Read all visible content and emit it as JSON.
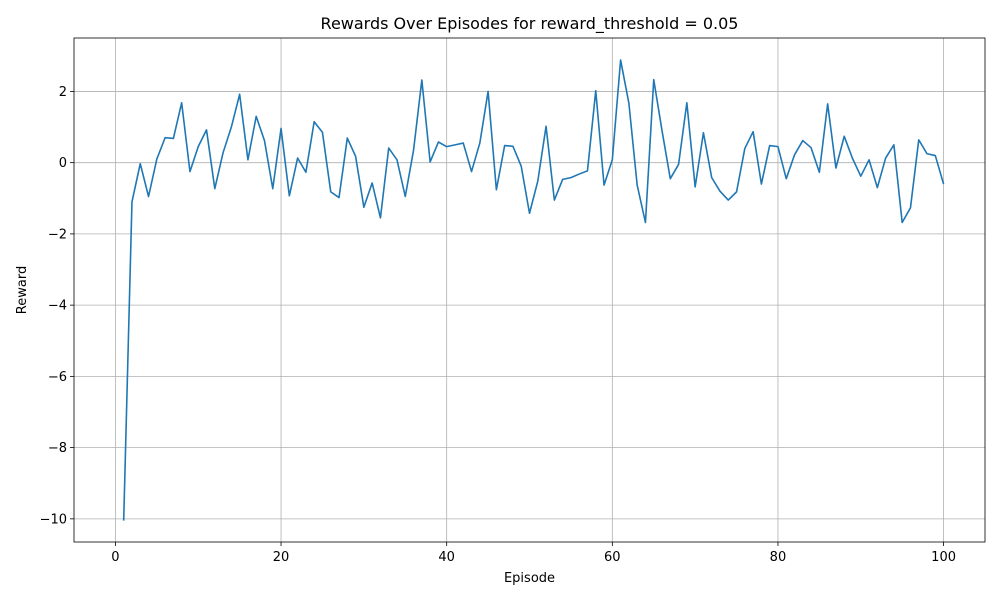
{
  "chart_data": {
    "type": "line",
    "title": "Rewards Over Episodes for reward_threshold = 0.05",
    "xlabel": "Episode",
    "ylabel": "Reward",
    "xlim": [
      -5,
      105
    ],
    "ylim": [
      -10.65,
      3.5
    ],
    "xticks": [
      0,
      20,
      40,
      60,
      80,
      100
    ],
    "xtick_labels": [
      "0",
      "20",
      "40",
      "60",
      "80",
      "100"
    ],
    "yticks": [
      -10,
      -8,
      -6,
      -4,
      -2,
      0,
      2
    ],
    "ytick_labels": [
      "−10",
      "−8",
      "−6",
      "−4",
      "−2",
      "0",
      "2"
    ],
    "grid": true,
    "line_color": "#1f77b4",
    "series": [
      {
        "x": [
          1,
          2,
          3,
          4,
          5,
          6,
          7,
          8,
          9,
          10,
          11,
          12,
          13,
          14,
          15,
          16,
          17,
          18,
          19,
          20,
          21,
          22,
          23,
          24,
          25,
          26,
          27,
          28,
          29,
          30,
          31,
          32,
          33,
          34,
          35,
          36,
          37,
          38,
          39,
          40,
          41,
          42,
          43,
          44,
          45,
          46,
          47,
          48,
          49,
          50,
          51,
          52,
          53,
          54,
          55,
          56,
          57,
          58,
          59,
          60,
          61,
          62,
          63,
          64,
          65,
          66,
          67,
          68,
          69,
          70,
          71,
          72,
          73,
          74,
          75,
          76,
          77,
          78,
          79,
          80,
          81,
          82,
          83,
          84,
          85,
          86,
          87,
          88,
          89,
          90,
          91,
          92,
          93,
          94,
          95,
          96,
          97,
          98,
          99,
          100
        ],
        "values": [
          -10.05,
          -1.1,
          -0.03,
          -0.95,
          0.1,
          0.7,
          0.68,
          1.68,
          -0.25,
          0.45,
          0.92,
          -0.73,
          0.28,
          1.0,
          1.92,
          0.08,
          1.3,
          0.62,
          -0.73,
          0.96,
          -0.93,
          0.13,
          -0.27,
          1.15,
          0.85,
          -0.82,
          -0.98,
          0.69,
          0.18,
          -1.25,
          -0.57,
          -1.55,
          0.41,
          0.08,
          -0.95,
          0.35,
          2.32,
          0.02,
          0.58,
          0.45,
          0.5,
          0.55,
          -0.25,
          0.55,
          2.0,
          -0.76,
          0.48,
          0.46,
          -0.1,
          -1.42,
          -0.52,
          1.02,
          -1.05,
          -0.47,
          -0.42,
          -0.32,
          -0.23,
          2.02,
          -0.63,
          0.08,
          2.88,
          1.67,
          -0.63,
          -1.68,
          2.33,
          0.9,
          -0.45,
          -0.05,
          1.68,
          -0.68,
          0.84,
          -0.42,
          -0.8,
          -1.05,
          -0.82,
          0.4,
          0.87,
          -0.6,
          0.48,
          0.45,
          -0.45,
          0.22,
          0.62,
          0.42,
          -0.27,
          1.65,
          -0.15,
          0.74,
          0.12,
          -0.38,
          0.08,
          -0.7,
          0.13,
          0.5,
          -1.68,
          -1.27,
          0.64,
          0.25,
          0.2,
          -0.6
        ]
      }
    ]
  }
}
